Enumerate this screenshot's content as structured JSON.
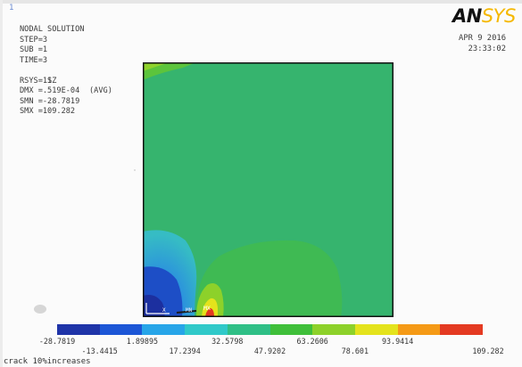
{
  "window": {
    "number": "1"
  },
  "logo": {
    "an": "AN",
    "sys": "SYS"
  },
  "info": {
    "title": "NODAL SOLUTION",
    "step": "STEP=3",
    "sub": "SUB =1",
    "time": "TIME=3",
    "quantity": "SZ",
    "avg": "(AVG)",
    "rsys": "RSYS=11",
    "dmx": "DMX =.519E-04",
    "smn": "SMN =-28.7819",
    "smx": "SMX =109.282"
  },
  "datetime": {
    "date": "APR  9 2016",
    "time": "23:33:02"
  },
  "markers": {
    "mx": "MX",
    "mn": "MN",
    "axis": "X"
  },
  "legend": {
    "colors": [
      "#1f34a8",
      "#1c56d6",
      "#27a5e8",
      "#30c9c9",
      "#2fbf86",
      "#3fbf3a",
      "#8dd12a",
      "#e4e31c",
      "#f59a16",
      "#e43a22"
    ],
    "labels_top": [
      "-28.7819",
      "1.89895",
      "32.5798",
      "63.2606",
      "93.9414"
    ],
    "labels_bottom": [
      "-13.4415",
      "17.2394",
      "47.9202",
      "78.601",
      "109.282"
    ]
  },
  "caption": "crack 10%increases"
}
